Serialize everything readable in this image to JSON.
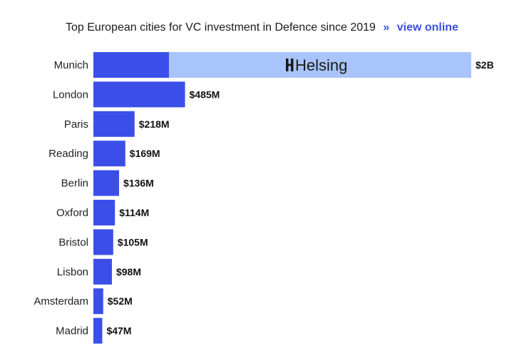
{
  "title": {
    "text": "Top European cities for VC investment in Defence since 2019",
    "arrows": "»",
    "link_label": "view online"
  },
  "colors": {
    "bar": "#3b4fe8",
    "highlight": "#a8c4fb",
    "link": "#3b4fe0"
  },
  "chart_data": {
    "type": "bar",
    "orientation": "horizontal",
    "title": "Top European cities for VC investment in Defence since 2019",
    "categories": [
      "Munich",
      "London",
      "Paris",
      "Reading",
      "Berlin",
      "Oxford",
      "Bristol",
      "Lisbon",
      "Amsterdam",
      "Madrid"
    ],
    "values": [
      2000,
      485,
      218,
      169,
      136,
      114,
      105,
      98,
      52,
      47
    ],
    "value_unit": "$M",
    "labels": [
      "$2B",
      "$485M",
      "$218M",
      "$169M",
      "$136M",
      "$114M",
      "$105M",
      "$98M",
      "$52M",
      "$47M"
    ],
    "highlight": {
      "category": "Munich",
      "company": "Helsing",
      "base_value": 400,
      "logo_icon": "helsing-logo-icon"
    },
    "xlim": [
      0,
      2000
    ],
    "grid": false,
    "legend": "none"
  }
}
